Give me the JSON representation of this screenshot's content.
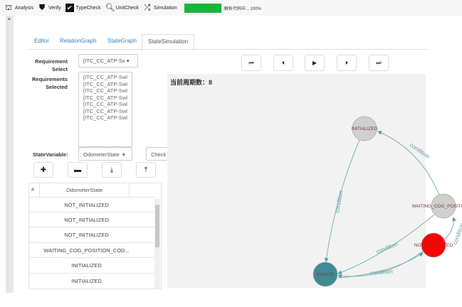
{
  "toolbar": {
    "items": [
      {
        "label": "Analysis",
        "icon": "hierarchy-icon"
      },
      {
        "label": "Verify",
        "icon": "shield-icon"
      },
      {
        "label": "TypeCheck",
        "icon": "checkbox-icon"
      },
      {
        "label": "UnitCheck",
        "icon": "magnifier-icon"
      },
      {
        "label": "Simulation",
        "icon": "shuffle-icon"
      }
    ],
    "progress_percent": 100,
    "progress_text": "解析代码中... 100%",
    "progress_color": "#19b53a"
  },
  "tabs": [
    {
      "label": "Editor"
    },
    {
      "label": "RelationGraph"
    },
    {
      "label": "StateGraph"
    },
    {
      "label": "StateSimulation",
      "active": true
    }
  ],
  "form": {
    "requirement_select_label": "Requirement Select",
    "requirement_select_value": "[ITC_CC_ATP-Sx",
    "requirements_selected_label": "Requirements Selected",
    "requirements_selected": [
      "[ITC_CC_ATP-Swl",
      "[ITC_CC_ATP-Swl",
      "[ITC_CC_ATP-Swl",
      "[ITC_CC_ATP-Swl",
      "[ITC_CC_ATP-Swl",
      "[ITC_CC_ATP-Swl",
      "[ITC_CC_ATP-Swl"
    ],
    "state_variable_label": "StateVariable:",
    "state_variable_value": "OdometerState",
    "check_label": "Check"
  },
  "table": {
    "headers": [
      "#",
      "OdometerState"
    ],
    "rows": [
      "NOT_INITIALIZED",
      "NOT_INITIALIZED",
      "NOT_INITIALIZED",
      "WAITING_COG_POSITION_COD...",
      "INITIALIZED",
      "INITIALIZED"
    ]
  },
  "sim": {
    "cycle_label": "当前周期数：8",
    "controls": [
      "first-icon",
      "previous-icon",
      "play-icon",
      "next-icon",
      "last-icon"
    ]
  },
  "graph": {
    "nodes": [
      {
        "id": "INITIALIZED",
        "label": "INITIALIZED",
        "color": "#d0d0d0"
      },
      {
        "id": "WAITING",
        "label": "WAITING_COG_POSITION_C",
        "color": "#d0d0d0"
      },
      {
        "id": "NOT_INITIALIZED",
        "label": "NOT_INITIALIZED",
        "color": "#ff0000"
      },
      {
        "id": "INVALID",
        "label": "INVALID",
        "color": "#3f8a93"
      }
    ],
    "edge_label": "condition",
    "edge_color": "#5f9ea0"
  }
}
